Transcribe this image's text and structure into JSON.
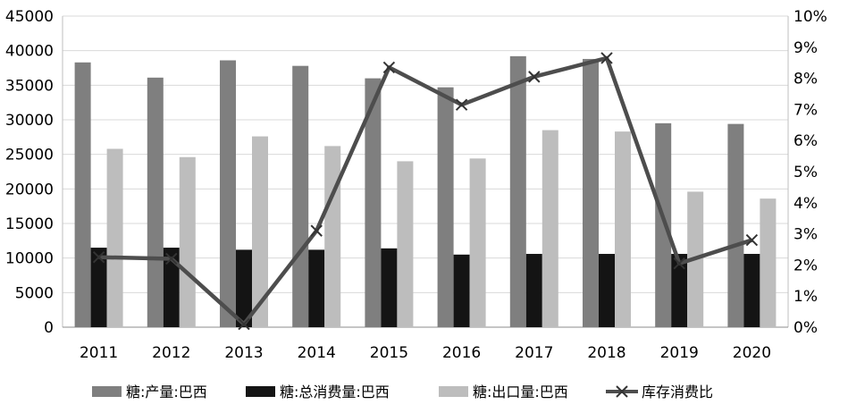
{
  "chart_data": {
    "type": "bar",
    "categories": [
      "2011",
      "2012",
      "2013",
      "2014",
      "2015",
      "2016",
      "2017",
      "2018",
      "2019",
      "2020"
    ],
    "series": [
      {
        "name": "糖:产量:巴西",
        "kind": "bar",
        "axis": "left",
        "color": "#7f7f7f",
        "values": [
          38300,
          36100,
          38600,
          37800,
          36000,
          34700,
          39200,
          38800,
          29500,
          29400
        ]
      },
      {
        "name": "糖:总消费量:巴西",
        "kind": "bar",
        "axis": "left",
        "color": "#141414",
        "values": [
          11500,
          11500,
          11200,
          11200,
          11400,
          10500,
          10600,
          10600,
          10600,
          10600
        ]
      },
      {
        "name": "糖:出口量:巴西",
        "kind": "bar",
        "axis": "left",
        "color": "#bdbdbd",
        "values": [
          25800,
          24600,
          27600,
          26200,
          24000,
          24400,
          28500,
          28300,
          19600,
          18600
        ]
      },
      {
        "name": "库存消费比",
        "kind": "line",
        "axis": "right",
        "color": "#4d4d4d",
        "values": [
          2.25,
          2.2,
          0.1,
          3.1,
          8.35,
          7.15,
          8.05,
          8.65,
          2.05,
          2.8
        ]
      }
    ],
    "left_axis": {
      "min": 0,
      "max": 45000,
      "step": 5000,
      "ticks": [
        "0",
        "5000",
        "10000",
        "15000",
        "20000",
        "25000",
        "30000",
        "35000",
        "40000",
        "45000"
      ]
    },
    "right_axis": {
      "min": 0,
      "max": 10,
      "step": 1,
      "ticks": [
        "0%",
        "1%",
        "2%",
        "3%",
        "4%",
        "5%",
        "6%",
        "7%",
        "8%",
        "9%",
        "10%"
      ]
    },
    "grid": true,
    "legend_position": "bottom"
  }
}
